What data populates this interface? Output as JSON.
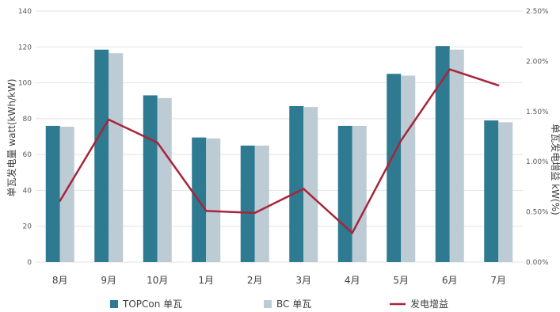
{
  "chart_data": {
    "type": "bar",
    "categories": [
      "8月",
      "9月",
      "10月",
      "1月",
      "2月",
      "3月",
      "4月",
      "5月",
      "6月",
      "7月"
    ],
    "series": [
      {
        "name": "TOPCon 单瓦",
        "kind": "bar",
        "axis": "left",
        "color": "#2e7a91",
        "values": [
          76,
          118.5,
          93,
          69.5,
          65,
          87,
          76,
          105,
          120.5,
          79
        ]
      },
      {
        "name": "BC 单瓦",
        "kind": "bar",
        "axis": "left",
        "color": "#bccbd4",
        "values": [
          75.5,
          116.5,
          91.5,
          69,
          65,
          86.5,
          76,
          104,
          118.5,
          78
        ]
      },
      {
        "name": "发电增益",
        "kind": "line",
        "axis": "right",
        "color": "#a8253a",
        "values": [
          0.0061,
          0.0142,
          0.0119,
          0.0051,
          0.0049,
          0.0073,
          0.0029,
          0.0121,
          0.0192,
          0.0176
        ]
      }
    ],
    "ylabel": "单瓦发电量 watt(kWh/kW)",
    "y2label": "单瓦发电增益 kW(%)",
    "ylim": [
      0,
      140
    ],
    "y_ticks": [
      0,
      20,
      40,
      60,
      80,
      100,
      120,
      140
    ],
    "y2lim": [
      0,
      0.025
    ],
    "y2_ticks": [
      0,
      0.005,
      0.01,
      0.015,
      0.02,
      0.025
    ],
    "y2_tick_labels": [
      "0.00%",
      "0.50%",
      "1.00%",
      "1.50%",
      "2.00%",
      "2.50%"
    ],
    "grid": true,
    "legend_position": "bottom"
  }
}
